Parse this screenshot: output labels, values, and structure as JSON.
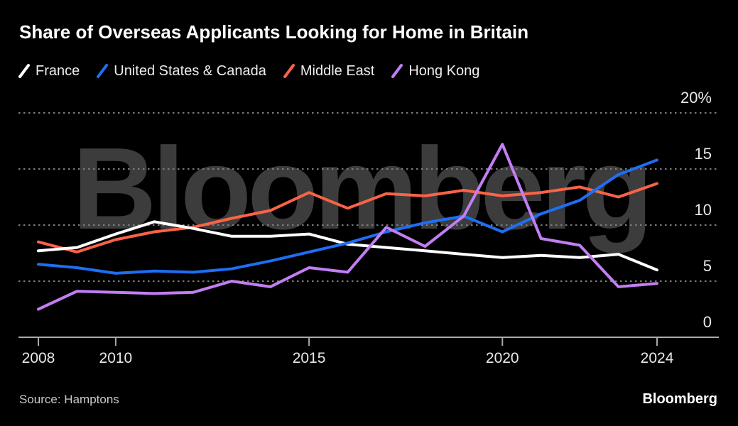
{
  "title": "Share of Overseas Applicants Looking for Home in Britain",
  "source": "Source: Hamptons",
  "brand": "Bloomberg",
  "watermark": "Bloomberg",
  "colors": {
    "background": "#000000",
    "title": "#ffffff",
    "legend_text": "#ededed",
    "axis_labels": "#e8e8e8",
    "gridline": "#7d7d7d",
    "axis_line": "#a9a9a9",
    "watermark": "#3c3c3c",
    "source_text": "#c9c9c9",
    "brand_text": "#ffffff"
  },
  "chart_data": {
    "type": "line",
    "title": "Share of Overseas Applicants Looking for Home in Britain",
    "unit": "%",
    "x": [
      2008,
      2009,
      2010,
      2011,
      2012,
      2013,
      2014,
      2015,
      2016,
      2017,
      2018,
      2019,
      2020,
      2021,
      2022,
      2023,
      2024
    ],
    "series": [
      {
        "name": "France",
        "color": "#ffffff",
        "values": [
          7.7,
          8.0,
          9.2,
          10.3,
          9.7,
          9.0,
          9.0,
          9.2,
          8.3,
          8.0,
          7.7,
          7.4,
          7.1,
          7.3,
          7.1,
          7.4,
          6.0
        ]
      },
      {
        "name": "United States & Canada",
        "color": "#1f6ef2",
        "values": [
          6.5,
          6.2,
          5.7,
          5.9,
          5.8,
          6.1,
          6.8,
          7.6,
          8.4,
          9.4,
          10.2,
          10.8,
          9.4,
          11.0,
          12.2,
          14.5,
          15.8
        ]
      },
      {
        "name": "Middle East",
        "color": "#fa6347",
        "values": [
          8.5,
          7.6,
          8.7,
          9.4,
          9.8,
          10.6,
          11.3,
          12.9,
          11.5,
          12.8,
          12.6,
          13.1,
          12.6,
          12.9,
          13.4,
          12.5,
          13.7
        ]
      },
      {
        "name": "Hong Kong",
        "color": "#c27ef2",
        "values": [
          2.5,
          4.1,
          4.0,
          3.9,
          4.0,
          5.0,
          4.5,
          6.2,
          5.8,
          9.8,
          8.1,
          10.8,
          17.2,
          8.8,
          8.2,
          4.5,
          4.8
        ]
      }
    ],
    "draw_order": [
      "Middle East",
      "France",
      "United States & Canada",
      "Hong Kong"
    ],
    "ylim": [
      0,
      20
    ],
    "yticks": [
      {
        "v": 20,
        "label": "20%"
      },
      {
        "v": 15,
        "label": "15"
      },
      {
        "v": 10,
        "label": "10"
      },
      {
        "v": 5,
        "label": "5"
      },
      {
        "v": 0,
        "label": "0"
      }
    ],
    "xticks": [
      2008,
      2010,
      2015,
      2020,
      2024
    ],
    "grid": "dashed horizontal gridlines",
    "legend_position": "top"
  }
}
